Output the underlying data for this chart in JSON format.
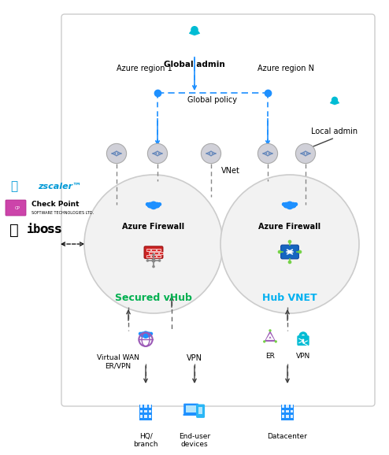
{
  "bg_color": "#ffffff",
  "title": "Global admin",
  "azure_region1": "Azure region 1",
  "azure_regionN": "Azure region N",
  "global_policy": "Global policy",
  "local_admin": "Local admin",
  "vnet_label": "VNet",
  "secured_vhub": "Secured vHub",
  "hub_vnet": "Hub VNET",
  "azure_firewall": "Azure Firewall",
  "virtual_wan": "Virtual WAN\nER/VPN",
  "vpn_label": "VPN",
  "er_label": "ER",
  "vpn2_label": "VPN",
  "hq_branch": "HQ/\nbranch",
  "end_user": "End-user\ndevices",
  "datacenter": "Datacenter",
  "zscaler_color": "#0099d6",
  "secured_vhub_color": "#00b050",
  "hub_vnet_color": "#00b0f0",
  "dashed_blue": "#1e90ff",
  "arrow_dark": "#404040",
  "gray_icon_bg": "#d0d0d8",
  "gray_icon_fg": "#6688bb",
  "circle_bg": "#f2f2f2",
  "circle_edge": "#cccccc",
  "box_bg": "#f8f8f8",
  "box_edge": "#cccccc",
  "firewall_red": "#cc2222",
  "hubvnet_blue": "#1565c0",
  "cloud_blue": "#1e90ff",
  "wan_purple": "#9b59b6",
  "er_purple": "#9b59b6",
  "lock_cyan": "#00bcd4",
  "building_blue": "#1e90ff",
  "person_cyan": "#00bcd4"
}
